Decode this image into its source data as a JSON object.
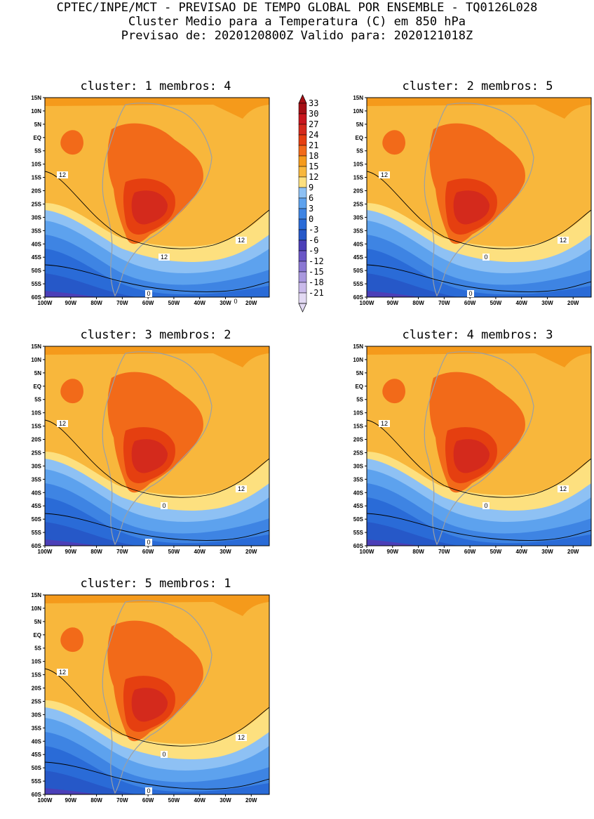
{
  "header": {
    "line1": "CPTEC/INPE/MCT - PREVISAO DE TEMPO GLOBAL POR ENSEMBLE - TQ0126L028",
    "line2": "Cluster Medio para a Temperatura (C) em 850 hPa",
    "line3": "Previsao de: 2020120800Z   Valido para: 2020121018Z"
  },
  "lat_labels": [
    "15N",
    "10N",
    "5N",
    "EQ",
    "5S",
    "10S",
    "15S",
    "20S",
    "25S",
    "30S",
    "35S",
    "40S",
    "45S",
    "50S",
    "55S",
    "60S"
  ],
  "lon_labels": [
    "100W",
    "90W",
    "80W",
    "70W",
    "60W",
    "50W",
    "40W",
    "30W",
    "20W"
  ],
  "colorbar": {
    "levels": [
      "33",
      "30",
      "27",
      "24",
      "21",
      "18",
      "15",
      "12",
      "9",
      "6",
      "3",
      "0",
      "-3",
      "-6",
      "-9",
      "-12",
      "-15",
      "-18",
      "-21"
    ],
    "colors": [
      "#a50f15",
      "#c8161e",
      "#d42a1c",
      "#e53f10",
      "#f26a19",
      "#f59a1b",
      "#f8b73c",
      "#fde07f",
      "#8ec1f4",
      "#5da2ee",
      "#3e84e3",
      "#2a6bd7",
      "#2658c8",
      "#4b3fb8",
      "#6a56c6",
      "#8a77d3",
      "#a998de",
      "#c9baea",
      "#e2d9f3"
    ]
  },
  "panels": [
    {
      "title": "cluster: 1   membros: 4",
      "contour_labels": [
        "12",
        "12",
        "12",
        "0",
        "0"
      ]
    },
    {
      "title": "cluster: 2   membros: 5",
      "contour_labels": [
        "12",
        "12",
        "0",
        "0"
      ]
    },
    {
      "title": "cluster: 3   membros: 2",
      "contour_labels": [
        "12",
        "12",
        "0",
        "0"
      ]
    },
    {
      "title": "cluster: 4   membros: 3",
      "contour_labels": [
        "12",
        "12",
        "0"
      ]
    },
    {
      "title": "cluster: 5   membros: 1",
      "contour_labels": [
        "12",
        "12",
        "0",
        "0"
      ]
    }
  ]
}
